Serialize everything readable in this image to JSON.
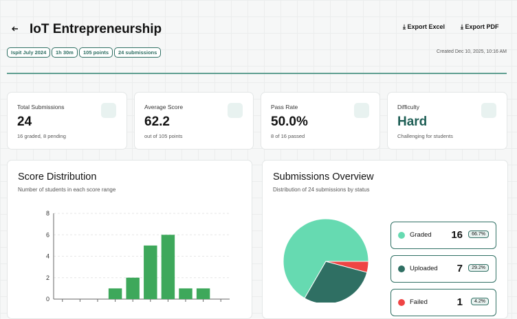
{
  "header": {
    "title": "IoT Entrepreneurship",
    "tags": [
      "Ispit July 2024",
      "1h 30m",
      "105 points",
      "24 submissions"
    ],
    "actions": [
      "Export Excel",
      "Export PDF"
    ],
    "created": "Created Dec 10, 2025, 10:16 AM"
  },
  "stats": [
    {
      "label": "Total Submissions",
      "value": "24",
      "note": "16 graded, 8 pending"
    },
    {
      "label": "Average Score",
      "value": "62.2",
      "note": "out of 105 points"
    },
    {
      "label": "Pass Rate",
      "value": "50.0%",
      "note": "8 of 16 passed"
    },
    {
      "label": "Difficulty",
      "value": "Hard",
      "note": "Challenging for students"
    }
  ],
  "score_distribution": {
    "title": "Score Distribution",
    "subtitle": "Number of students in each score range",
    "chart_data": {
      "type": "bar",
      "categories": [
        null,
        null,
        null,
        null,
        null,
        null,
        null,
        null,
        null,
        null
      ],
      "values": [
        0,
        0,
        0,
        1,
        2,
        5,
        6,
        1,
        1,
        0
      ],
      "color": "#3ea85b",
      "ylim": [
        0,
        8
      ],
      "yticks": [
        0,
        2,
        4,
        6,
        8
      ],
      "grid": true
    }
  },
  "submissions_overview": {
    "title": "Submissions Overview",
    "subtitle": "Distribution of 24 submissions by status",
    "chart_data": {
      "type": "pie",
      "categories": [
        "Graded",
        "Uploaded",
        "Failed"
      ],
      "values": [
        16,
        7,
        1
      ],
      "value_labels": [
        "66.7%",
        "29.2%",
        "4.2%"
      ],
      "colors": [
        "#66dab1",
        "#2f6f63",
        "#ef4444"
      ]
    }
  }
}
